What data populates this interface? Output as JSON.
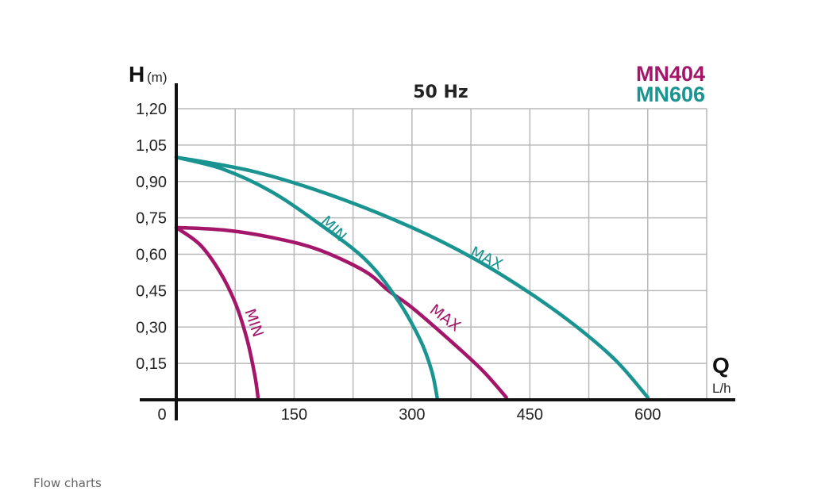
{
  "caption": "Flow charts",
  "chart_data": {
    "type": "line",
    "title": "50 Hz",
    "ylabel_main": "H",
    "ylabel_unit": "(m)",
    "xlabel_main": "Q",
    "xlabel_unit": "L/h",
    "xlim": [
      0,
      675
    ],
    "ylim": [
      0,
      1.2
    ],
    "x_ticks": [
      {
        "v": 0,
        "label": "0"
      },
      {
        "v": 150,
        "label": "150"
      },
      {
        "v": 300,
        "label": "300"
      },
      {
        "v": 450,
        "label": "450"
      },
      {
        "v": 600,
        "label": "600"
      }
    ],
    "x_grid": [
      150,
      300,
      450,
      600,
      675
    ],
    "x_minor_grid": [
      75,
      225,
      375,
      525
    ],
    "y_ticks": [
      {
        "v": 0.15,
        "label": "0,15"
      },
      {
        "v": 0.3,
        "label": "0,30"
      },
      {
        "v": 0.45,
        "label": "0,45"
      },
      {
        "v": 0.6,
        "label": "0,60"
      },
      {
        "v": 0.75,
        "label": "0,75"
      },
      {
        "v": 0.9,
        "label": "0,90"
      },
      {
        "v": 1.05,
        "label": "1,05"
      },
      {
        "v": 1.2,
        "label": "1,20"
      }
    ],
    "grid": true,
    "legend": [
      {
        "name": "MN404",
        "color": "#a3166a"
      },
      {
        "name": "MN606",
        "color": "#1a9490"
      }
    ],
    "series": [
      {
        "model": "MN404",
        "label": "MIN",
        "color": "#a3166a",
        "points": [
          [
            0,
            0.71
          ],
          [
            30,
            0.64
          ],
          [
            55,
            0.53
          ],
          [
            75,
            0.4
          ],
          [
            90,
            0.25
          ],
          [
            100,
            0.1
          ],
          [
            104,
            0.01
          ]
        ]
      },
      {
        "model": "MN404",
        "label": "MAX",
        "color": "#a3166a",
        "points": [
          [
            0,
            0.71
          ],
          [
            60,
            0.7
          ],
          [
            120,
            0.67
          ],
          [
            180,
            0.62
          ],
          [
            240,
            0.53
          ],
          [
            270,
            0.45
          ],
          [
            300,
            0.38
          ],
          [
            350,
            0.24
          ],
          [
            390,
            0.12
          ],
          [
            420,
            0.01
          ]
        ]
      },
      {
        "model": "MN606",
        "label": "MIN",
        "color": "#1a9490",
        "points": [
          [
            0,
            1.0
          ],
          [
            60,
            0.95
          ],
          [
            120,
            0.86
          ],
          [
            180,
            0.73
          ],
          [
            240,
            0.58
          ],
          [
            280,
            0.42
          ],
          [
            310,
            0.25
          ],
          [
            325,
            0.12
          ],
          [
            332,
            0.01
          ]
        ]
      },
      {
        "model": "MN606",
        "label": "MAX",
        "color": "#1a9490",
        "points": [
          [
            0,
            1.0
          ],
          [
            100,
            0.94
          ],
          [
            200,
            0.84
          ],
          [
            300,
            0.71
          ],
          [
            380,
            0.58
          ],
          [
            450,
            0.44
          ],
          [
            510,
            0.3
          ],
          [
            560,
            0.16
          ],
          [
            600,
            0.01
          ]
        ]
      }
    ]
  }
}
